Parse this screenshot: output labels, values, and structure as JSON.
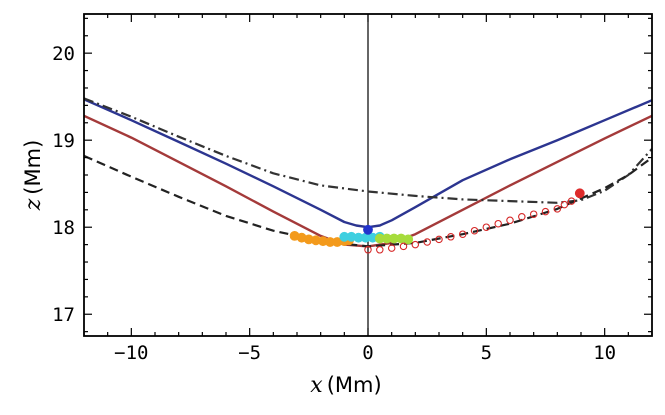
{
  "chart_data": {
    "type": "line",
    "title": "",
    "xlabel": {
      "var": "x",
      "unit": "(Mm)"
    },
    "ylabel": {
      "var": "z",
      "unit": "(Mm)"
    },
    "xlim": [
      -12,
      12
    ],
    "ylim": [
      16.75,
      20.45
    ],
    "x_ticks": [
      -10,
      -5,
      0,
      5,
      10
    ],
    "x_tick_labels": [
      "−10",
      "−5",
      "0",
      "5",
      "10"
    ],
    "y_ticks": [
      17,
      18,
      19,
      20
    ],
    "y_tick_labels": [
      "17",
      "18",
      "19",
      "20"
    ],
    "grid": false,
    "vertical_line_x": 0,
    "series": [
      {
        "name": "blue",
        "color": "#2c3590",
        "style": "solid",
        "x": [
          -12,
          -10,
          -8,
          -6,
          -4,
          -2,
          -1,
          -0.5,
          0,
          0.5,
          1,
          2,
          4,
          6,
          8,
          10,
          12
        ],
        "y": [
          19.47,
          19.23,
          18.98,
          18.73,
          18.47,
          18.2,
          18.06,
          18.02,
          18.0,
          18.02,
          18.08,
          18.23,
          18.54,
          18.78,
          19.0,
          19.23,
          19.46
        ]
      },
      {
        "name": "brown",
        "color": "#a43a3a",
        "style": "solid",
        "x": [
          -12,
          -10,
          -8,
          -6,
          -4,
          -2,
          -1,
          0,
          1,
          2,
          4,
          6,
          8,
          10,
          12
        ],
        "y": [
          19.28,
          19.03,
          18.75,
          18.47,
          18.18,
          17.9,
          17.8,
          17.78,
          17.82,
          17.92,
          18.2,
          18.48,
          18.75,
          19.02,
          19.28
        ]
      },
      {
        "name": "dashdot",
        "color": "#333333",
        "style": "dashdot",
        "x": [
          -12,
          -10,
          -8,
          -6,
          -4,
          -2,
          0,
          2,
          4,
          6,
          8,
          9,
          10,
          11,
          12
        ],
        "y": [
          19.48,
          19.27,
          19.04,
          18.82,
          18.62,
          18.48,
          18.41,
          18.36,
          18.32,
          18.3,
          18.28,
          18.31,
          18.42,
          18.6,
          18.9
        ]
      },
      {
        "name": "dashed",
        "color": "#222222",
        "style": "dashed",
        "x": [
          -12,
          -10,
          -8,
          -6,
          -4,
          -2,
          0,
          2,
          4,
          6,
          8,
          9,
          10,
          11,
          12
        ],
        "y": [
          18.82,
          18.58,
          18.35,
          18.13,
          17.96,
          17.84,
          17.78,
          17.82,
          17.92,
          18.04,
          18.21,
          18.33,
          18.45,
          18.6,
          18.8
        ]
      }
    ],
    "markers": [
      {
        "name": "orange-cluster",
        "color": "#f39a1c",
        "x": [
          -3.1,
          -2.8,
          -2.5,
          -2.2,
          -1.9,
          -1.6,
          -1.3,
          -1.0,
          -0.8
        ],
        "y": [
          17.9,
          17.88,
          17.86,
          17.85,
          17.84,
          17.83,
          17.83,
          17.84,
          17.85
        ]
      },
      {
        "name": "cyan-cluster",
        "color": "#3ecfe0",
        "x": [
          -1.0,
          -0.7,
          -0.4,
          -0.1,
          0.2,
          0.5
        ],
        "y": [
          17.89,
          17.89,
          17.88,
          17.88,
          17.88,
          17.89
        ]
      },
      {
        "name": "green-cluster",
        "color": "#a6dc3c",
        "x": [
          0.5,
          0.8,
          1.1,
          1.4,
          1.7
        ],
        "y": [
          17.87,
          17.87,
          17.87,
          17.87,
          17.86
        ]
      },
      {
        "name": "blue-dot",
        "color": "#2233cc",
        "x": [
          0.0
        ],
        "y": [
          17.97
        ]
      },
      {
        "name": "red-end",
        "color": "#dd2a2a",
        "x": [
          8.95
        ],
        "y": [
          18.39
        ]
      },
      {
        "name": "red-open-circles",
        "color": "#d62828",
        "x": [
          0.0,
          0.5,
          1.0,
          1.5,
          2.0,
          2.5,
          3.0,
          3.5,
          4.0,
          4.5,
          5.0,
          5.5,
          6.0,
          6.5,
          7.0,
          7.5,
          8.0,
          8.3,
          8.6
        ],
        "y": [
          17.74,
          17.74,
          17.76,
          17.78,
          17.8,
          17.83,
          17.86,
          17.89,
          17.92,
          17.96,
          18.0,
          18.04,
          18.08,
          18.12,
          18.15,
          18.18,
          18.21,
          18.26,
          18.3
        ]
      }
    ]
  }
}
